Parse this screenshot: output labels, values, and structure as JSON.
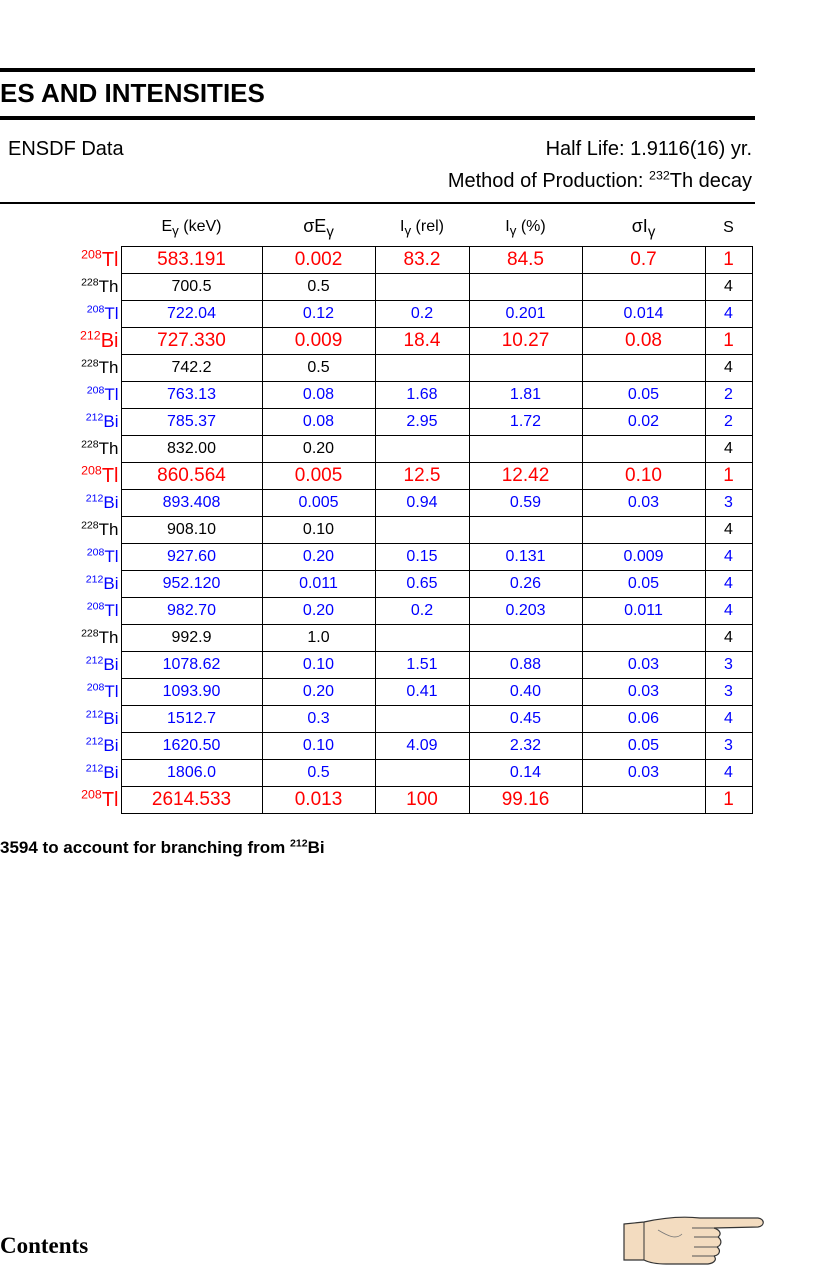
{
  "title": "ES AND INTENSITIES",
  "source": "ENSDF Data",
  "half_life": "Half Life: 1.9116(16) yr.",
  "production": {
    "prefix": "Method of Production: ",
    "mass": "232",
    "element": "Th decay"
  },
  "columns": {
    "energy": {
      "sym": "E",
      "sub": "γ",
      "unit": " (keV)"
    },
    "sigma_energy": {
      "sym": "σE",
      "sub": "γ"
    },
    "intensity_rel": {
      "sym": "I",
      "sub": "γ",
      "unit": " (rel)"
    },
    "intensity_pct": {
      "sym": "I",
      "sub": "γ",
      "unit": " (%)"
    },
    "sigma_intensity": {
      "sym": "σI",
      "sub": "γ"
    },
    "s": "S"
  },
  "rows": [
    {
      "mass": "208",
      "el": "Tl",
      "e": "583.191",
      "de": "0.002",
      "irel": "83.2",
      "ipct": "84.5",
      "di": "0.7",
      "s": "1",
      "color": "red"
    },
    {
      "mass": "228",
      "el": "Th",
      "e": "700.5",
      "de": "0.5",
      "irel": "",
      "ipct": "",
      "di": "",
      "s": "4",
      "color": "black"
    },
    {
      "mass": "208",
      "el": "Tl",
      "e": "722.04",
      "de": "0.12",
      "irel": "0.2",
      "ipct": "0.201",
      "di": "0.014",
      "s": "4",
      "color": "blue"
    },
    {
      "mass": "212",
      "el": "Bi",
      "e": "727.330",
      "de": "0.009",
      "irel": "18.4",
      "ipct": "10.27",
      "di": "0.08",
      "s": "1",
      "color": "red"
    },
    {
      "mass": "228",
      "el": "Th",
      "e": "742.2",
      "de": "0.5",
      "irel": "",
      "ipct": "",
      "di": "",
      "s": "4",
      "color": "black"
    },
    {
      "mass": "208",
      "el": "Tl",
      "e": "763.13",
      "de": "0.08",
      "irel": "1.68",
      "ipct": "1.81",
      "di": "0.05",
      "s": "2",
      "color": "blue"
    },
    {
      "mass": "212",
      "el": "Bi",
      "e": "785.37",
      "de": "0.08",
      "irel": "2.95",
      "ipct": "1.72",
      "di": "0.02",
      "s": "2",
      "color": "blue"
    },
    {
      "mass": "228",
      "el": "Th",
      "e": "832.00",
      "de": "0.20",
      "irel": "",
      "ipct": "",
      "di": "",
      "s": "4",
      "color": "black"
    },
    {
      "mass": "208",
      "el": "Tl",
      "e": "860.564",
      "de": "0.005",
      "irel": "12.5",
      "ipct": "12.42",
      "di": "0.10",
      "s": "1",
      "color": "red"
    },
    {
      "mass": "212",
      "el": "Bi",
      "e": "893.408",
      "de": "0.005",
      "irel": "0.94",
      "ipct": "0.59",
      "di": "0.03",
      "s": "3",
      "color": "blue"
    },
    {
      "mass": "228",
      "el": "Th",
      "e": "908.10",
      "de": "0.10",
      "irel": "",
      "ipct": "",
      "di": "",
      "s": "4",
      "color": "black"
    },
    {
      "mass": "208",
      "el": "Tl",
      "e": "927.60",
      "de": "0.20",
      "irel": "0.15",
      "ipct": "0.131",
      "di": "0.009",
      "s": "4",
      "color": "blue"
    },
    {
      "mass": "212",
      "el": "Bi",
      "e": "952.120",
      "de": "0.011",
      "irel": "0.65",
      "ipct": "0.26",
      "di": "0.05",
      "s": "4",
      "color": "blue"
    },
    {
      "mass": "208",
      "el": "Tl",
      "e": "982.70",
      "de": "0.20",
      "irel": "0.2",
      "ipct": "0.203",
      "di": "0.011",
      "s": "4",
      "color": "blue"
    },
    {
      "mass": "228",
      "el": "Th",
      "e": "992.9",
      "de": "1.0",
      "irel": "",
      "ipct": "",
      "di": "",
      "s": "4",
      "color": "black"
    },
    {
      "mass": "212",
      "el": "Bi",
      "e": "1078.62",
      "de": "0.10",
      "irel": "1.51",
      "ipct": "0.88",
      "di": "0.03",
      "s": "3",
      "color": "blue"
    },
    {
      "mass": "208",
      "el": "Tl",
      "e": "1093.90",
      "de": "0.20",
      "irel": "0.41",
      "ipct": "0.40",
      "di": "0.03",
      "s": "3",
      "color": "blue"
    },
    {
      "mass": "212",
      "el": "Bi",
      "e": "1512.7",
      "de": "0.3",
      "irel": "",
      "ipct": "0.45",
      "di": "0.06",
      "s": "4",
      "color": "blue"
    },
    {
      "mass": "212",
      "el": "Bi",
      "e": "1620.50",
      "de": "0.10",
      "irel": "4.09",
      "ipct": "2.32",
      "di": "0.05",
      "s": "3",
      "color": "blue"
    },
    {
      "mass": "212",
      "el": "Bi",
      "e": "1806.0",
      "de": "0.5",
      "irel": "",
      "ipct": "0.14",
      "di": "0.03",
      "s": "4",
      "color": "blue"
    },
    {
      "mass": "208",
      "el": "Tl",
      "e": "2614.533",
      "de": "0.013",
      "irel": "100",
      "ipct": "99.16",
      "di": "",
      "s": "1",
      "color": "red"
    }
  ],
  "footnote": {
    "text": "3594 to account for branching from ",
    "mass": "212",
    "el": "Bi"
  },
  "contents_link": "Contents",
  "next_icon": "pointing-hand-icon"
}
